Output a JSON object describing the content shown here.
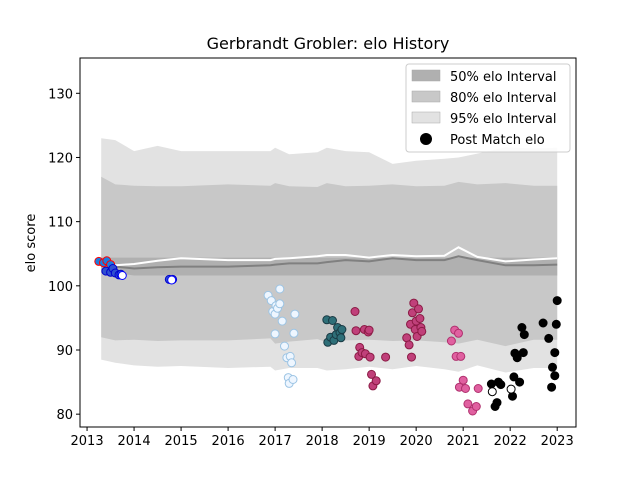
{
  "chart_data": {
    "type": "scatter",
    "title": "Gerbrandt Grobler: elo History",
    "xlabel": "",
    "ylabel": "elo score",
    "xlim": [
      2012.85,
      2023.4
    ],
    "ylim": [
      78,
      135.5
    ],
    "xticks": [
      2013,
      2014,
      2015,
      2016,
      2017,
      2018,
      2019,
      2020,
      2021,
      2022,
      2023
    ],
    "yticks": [
      80,
      90,
      100,
      110,
      120,
      130
    ],
    "grid": false,
    "legend_position": "top-right",
    "legend": [
      {
        "label": "50% elo Interval",
        "kind": "band",
        "color": "#b0b0b0"
      },
      {
        "label": "80% elo Interval",
        "kind": "band",
        "color": "#c8c8c8"
      },
      {
        "label": "95% elo Interval",
        "kind": "band",
        "color": "#e2e2e2"
      },
      {
        "label": "Post Match elo",
        "kind": "marker",
        "color": "#000000"
      }
    ],
    "bands": {
      "x": [
        2013.3,
        2013.6,
        2014.0,
        2014.5,
        2015.0,
        2016.0,
        2016.9,
        2017.0,
        2017.3,
        2017.9,
        2018.1,
        2018.5,
        2019.0,
        2019.5,
        2020.0,
        2020.6,
        2020.9,
        2021.3,
        2021.9,
        2022.5,
        2023.0
      ],
      "median": [
        103.4,
        103.0,
        102.7,
        102.9,
        103.0,
        103.0,
        103.2,
        103.3,
        103.5,
        103.5,
        103.7,
        104.0,
        103.8,
        104.3,
        104.0,
        104.0,
        104.6,
        104.0,
        103.2,
        103.2,
        103.3
      ],
      "p50_low": [
        102.0,
        102.0,
        101.6,
        101.6,
        101.6,
        101.6,
        101.6,
        101.6,
        101.6,
        101.6,
        101.6,
        101.6,
        101.6,
        101.6,
        101.6,
        101.6,
        101.6,
        101.6,
        101.6,
        101.6,
        101.6
      ],
      "p50_high": [
        104.4,
        104.4,
        104.4,
        104.4,
        104.4,
        104.4,
        104.4,
        104.4,
        104.4,
        104.4,
        104.4,
        104.4,
        104.4,
        104.4,
        104.4,
        104.4,
        104.4,
        104.4,
        104.4,
        104.4,
        104.4
      ],
      "p80_low": [
        92.0,
        91.5,
        91.6,
        91.4,
        91.5,
        91.5,
        91.8,
        91.0,
        91.3,
        91.7,
        91.2,
        91.5,
        91.6,
        91.4,
        91.5,
        91.2,
        91.0,
        91.6,
        90.6,
        91.6,
        91.6
      ],
      "p80_high": [
        117.0,
        115.8,
        115.6,
        115.5,
        115.5,
        115.8,
        115.6,
        116.0,
        115.5,
        115.4,
        116.0,
        115.5,
        115.6,
        115.8,
        115.5,
        115.6,
        116.2,
        115.8,
        116.0,
        115.6,
        115.6
      ],
      "p95_low": [
        88.5,
        88.0,
        87.6,
        87.4,
        87.5,
        87.2,
        87.4,
        86.8,
        87.2,
        87.2,
        86.8,
        87.0,
        87.4,
        87.0,
        87.5,
        87.0,
        86.6,
        87.6,
        86.5,
        87.2,
        87.2
      ],
      "p95_high": [
        123.0,
        122.7,
        121.0,
        121.8,
        121.0,
        121.0,
        121.0,
        121.5,
        120.5,
        120.8,
        121.5,
        121.0,
        120.8,
        119.0,
        119.5,
        119.8,
        120.0,
        120.6,
        121.6,
        121.4,
        121.5
      ],
      "white_line": [
        103.5,
        103.2,
        103.4,
        103.9,
        104.3,
        104.0,
        104.0,
        104.2,
        104.3,
        104.6,
        104.8,
        104.8,
        104.4,
        104.8,
        104.6,
        104.7,
        106.0,
        104.5,
        103.8,
        104.1,
        104.3
      ]
    },
    "series": [
      {
        "color": "#1a7de0",
        "edge": "#ff0000",
        "points": [
          [
            2013.25,
            103.8
          ],
          [
            2013.35,
            103.6
          ],
          [
            2013.42,
            103.9
          ],
          [
            2013.5,
            103.3
          ]
        ]
      },
      {
        "color": "#3050d0",
        "edge": "#0000cc",
        "points": [
          [
            2013.4,
            102.3
          ],
          [
            2013.5,
            102.1
          ],
          [
            2013.55,
            102.7
          ],
          [
            2013.6,
            102.0
          ],
          [
            2013.68,
            101.7
          ],
          [
            2013.72,
            101.8
          ],
          [
            2014.75,
            101.0
          ],
          [
            2014.82,
            101.0
          ]
        ]
      },
      {
        "color": "#ffffff",
        "edge": "#0000ff",
        "points": [
          [
            2013.75,
            101.6
          ],
          [
            2014.8,
            100.9
          ]
        ]
      },
      {
        "color": "#eef6ff",
        "edge": "#9cc4e4",
        "points": [
          [
            2016.85,
            98.5
          ],
          [
            2016.92,
            97.7
          ],
          [
            2016.95,
            96.0
          ],
          [
            2017.0,
            95.6
          ],
          [
            2017.02,
            96.9
          ],
          [
            2017.05,
            96.5
          ],
          [
            2017.1,
            99.5
          ],
          [
            2017.1,
            97.2
          ],
          [
            2017.15,
            94.5
          ],
          [
            2017.2,
            90.6
          ],
          [
            2017.25,
            88.8
          ],
          [
            2017.28,
            85.7
          ],
          [
            2017.3,
            84.8
          ],
          [
            2017.32,
            89.0
          ],
          [
            2017.35,
            88.0
          ],
          [
            2017.38,
            85.4
          ],
          [
            2017.4,
            92.6
          ],
          [
            2017.42,
            95.6
          ],
          [
            2017.0,
            92.5
          ]
        ]
      },
      {
        "color": "#2e6f78",
        "edge": "#1a3a44",
        "points": [
          [
            2018.1,
            94.7
          ],
          [
            2018.12,
            91.2
          ],
          [
            2018.18,
            92.0
          ],
          [
            2018.22,
            94.6
          ],
          [
            2018.25,
            91.5
          ],
          [
            2018.3,
            92.4
          ],
          [
            2018.33,
            93.5
          ],
          [
            2018.38,
            92.7
          ],
          [
            2018.42,
            93.2
          ],
          [
            2018.4,
            91.9
          ]
        ]
      },
      {
        "color": "#c0407a",
        "edge": "#8a1a44",
        "points": [
          [
            2018.7,
            96.0
          ],
          [
            2018.72,
            93.0
          ],
          [
            2018.78,
            89.0
          ],
          [
            2018.8,
            90.4
          ],
          [
            2018.85,
            89.6
          ],
          [
            2018.9,
            93.2
          ],
          [
            2018.92,
            89.4
          ],
          [
            2018.98,
            92.8
          ],
          [
            2019.0,
            93.1
          ],
          [
            2019.02,
            88.9
          ],
          [
            2019.05,
            86.2
          ],
          [
            2019.08,
            84.4
          ],
          [
            2019.15,
            85.2
          ],
          [
            2019.35,
            88.9
          ],
          [
            2019.8,
            91.9
          ],
          [
            2019.85,
            90.8
          ],
          [
            2019.88,
            94.0
          ],
          [
            2019.9,
            88.9
          ],
          [
            2019.92,
            95.8
          ],
          [
            2019.95,
            97.3
          ],
          [
            2019.98,
            93.2
          ],
          [
            2020.0,
            94.5
          ],
          [
            2020.02,
            92.1
          ],
          [
            2020.05,
            96.4
          ],
          [
            2020.08,
            94.9
          ],
          [
            2020.1,
            93.5
          ],
          [
            2020.12,
            92.9
          ]
        ]
      },
      {
        "color": "#e060a0",
        "edge": "#b0306e",
        "points": [
          [
            2020.75,
            91.4
          ],
          [
            2020.82,
            93.1
          ],
          [
            2020.85,
            89.0
          ],
          [
            2020.9,
            92.6
          ],
          [
            2020.92,
            84.2
          ],
          [
            2020.95,
            89.0
          ],
          [
            2021.0,
            85.3
          ],
          [
            2021.05,
            84.0
          ],
          [
            2021.1,
            81.6
          ],
          [
            2021.2,
            80.5
          ],
          [
            2021.28,
            81.2
          ],
          [
            2021.32,
            84.0
          ]
        ]
      },
      {
        "color": "#000000",
        "edge": "#000000",
        "points": [
          [
            2021.6,
            84.7
          ],
          [
            2021.68,
            81.2
          ],
          [
            2021.72,
            81.8
          ],
          [
            2021.75,
            85.0
          ],
          [
            2021.8,
            84.6
          ],
          [
            2022.05,
            82.8
          ],
          [
            2022.08,
            85.8
          ],
          [
            2022.1,
            89.5
          ],
          [
            2022.15,
            88.8
          ],
          [
            2022.2,
            85.0
          ],
          [
            2022.25,
            93.5
          ],
          [
            2022.28,
            89.6
          ],
          [
            2022.3,
            92.4
          ],
          [
            2022.7,
            94.2
          ],
          [
            2022.82,
            91.8
          ],
          [
            2022.88,
            84.2
          ],
          [
            2022.9,
            87.3
          ],
          [
            2022.95,
            89.6
          ],
          [
            2022.95,
            86.0
          ],
          [
            2022.98,
            94.0
          ],
          [
            2023.0,
            97.7
          ]
        ]
      },
      {
        "color": "#ffffff",
        "edge": "#000000",
        "points": [
          [
            2021.62,
            83.5
          ],
          [
            2022.02,
            83.9
          ]
        ]
      }
    ]
  }
}
